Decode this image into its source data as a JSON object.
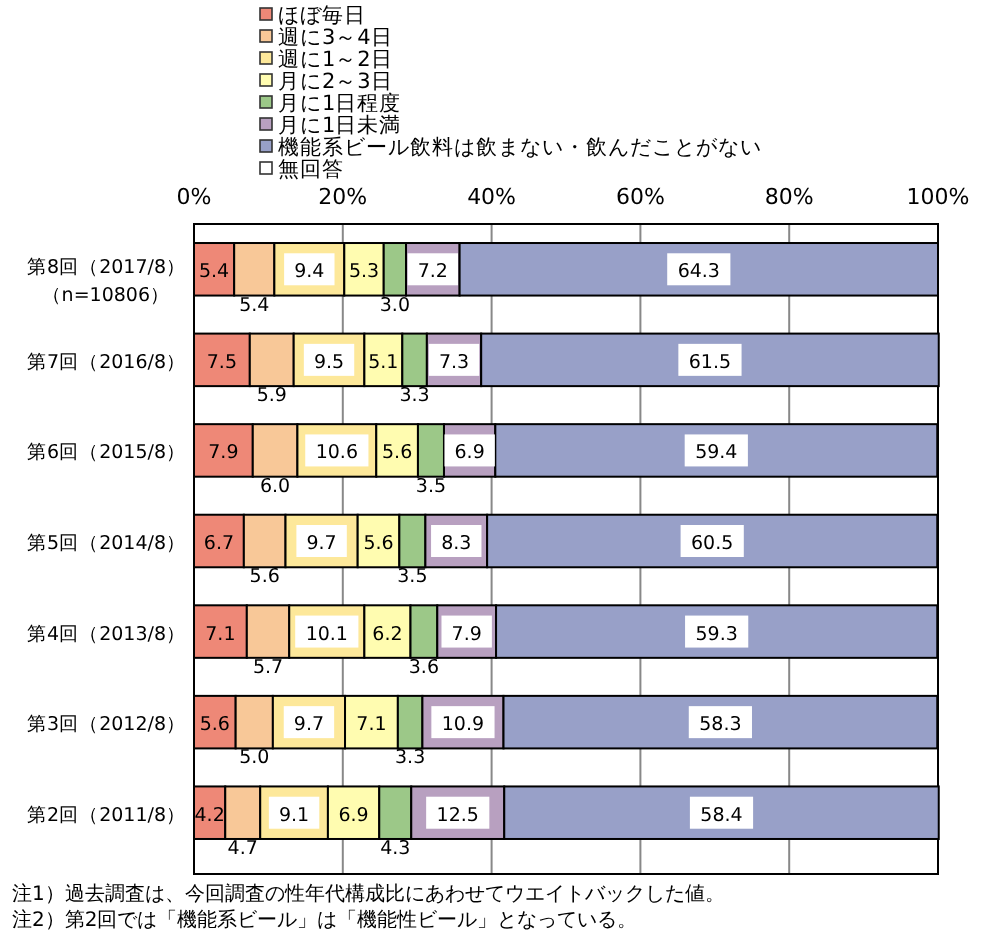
{
  "chart_data": {
    "type": "bar",
    "orientation": "horizontal",
    "stacked": true,
    "legend": "top",
    "grid": "x",
    "categories": [
      "第8回（2017/8）（n=10806）",
      "第7回（2016/8）",
      "第6回（2015/8）",
      "第5回（2014/8）",
      "第4回（2013/8）",
      "第3回（2012/8）",
      "第2回（2011/8）"
    ],
    "xlim": [
      0,
      100
    ],
    "xticks": [
      {
        "value": 0,
        "label": "0%"
      },
      {
        "value": 20,
        "label": "20%"
      },
      {
        "value": 40,
        "label": "40%"
      },
      {
        "value": 60,
        "label": "60%"
      },
      {
        "value": 80,
        "label": "80%"
      },
      {
        "value": 100,
        "label": "100%"
      }
    ],
    "series": [
      {
        "name": "ほぼ毎日",
        "color": "#ee8877",
        "values": [
          5.4,
          7.5,
          7.9,
          6.7,
          7.1,
          5.6,
          4.2
        ],
        "value_labels": [
          "5.4",
          "7.5",
          "7.9",
          "6.7",
          "7.1",
          "5.6",
          "4.2"
        ]
      },
      {
        "name": "週に3～4日",
        "color": "#f8c898",
        "values": [
          5.4,
          5.9,
          6.0,
          5.6,
          5.7,
          5.0,
          4.7
        ],
        "value_labels": [
          "5.4",
          "5.9",
          "6.0",
          "5.6",
          "5.7",
          "5.0",
          "4.7"
        ]
      },
      {
        "name": "週に1～2日",
        "color": "#fde89a",
        "values": [
          9.4,
          9.5,
          10.6,
          9.7,
          10.1,
          9.7,
          9.1
        ],
        "value_labels": [
          "9.4",
          "9.5",
          "10.6",
          "9.7",
          "10.1",
          "9.7",
          "9.1"
        ]
      },
      {
        "name": "月に2～3日",
        "color": "#fffcb0",
        "values": [
          5.3,
          5.1,
          5.6,
          5.6,
          6.2,
          7.1,
          6.9
        ],
        "value_labels": [
          "5.3",
          "5.1",
          "5.6",
          "5.6",
          "6.2",
          "7.1",
          "6.9"
        ]
      },
      {
        "name": "月に1日程度",
        "color": "#9cc888",
        "values": [
          3.0,
          3.3,
          3.5,
          3.5,
          3.6,
          3.3,
          4.3
        ],
        "value_labels": [
          "3.0",
          "3.3",
          "3.5",
          "3.5",
          "3.6",
          "3.3",
          "4.3"
        ]
      },
      {
        "name": "月に1日未満",
        "color": "#b8a0c0",
        "values": [
          7.2,
          7.3,
          6.9,
          8.3,
          7.9,
          10.9,
          12.5
        ],
        "value_labels": [
          "7.2",
          "7.3",
          "6.9",
          "8.3",
          "7.9",
          "10.9",
          "12.5"
        ]
      },
      {
        "name": "機能系ビール飲料は飲まない・飲んだことがない",
        "color": "#98a0c8",
        "values": [
          64.3,
          61.5,
          59.4,
          60.5,
          59.3,
          58.3,
          58.4
        ],
        "value_labels": [
          "64.3",
          "61.5",
          "59.4",
          "60.5",
          "59.3",
          "58.3",
          "58.4"
        ]
      },
      {
        "name": "無回答",
        "color": "#ffffff",
        "values": [
          0,
          0,
          0,
          0,
          0,
          0,
          0
        ],
        "value_labels": [
          null,
          null,
          null,
          null,
          null,
          null,
          null
        ]
      }
    ],
    "annotations": [
      "注1）過去調査は、今回調査の性年代構成比にあわせてウエイトバックした値。",
      "注2）第2回では「機能系ビール」は「機能性ビール」となっている。"
    ]
  }
}
